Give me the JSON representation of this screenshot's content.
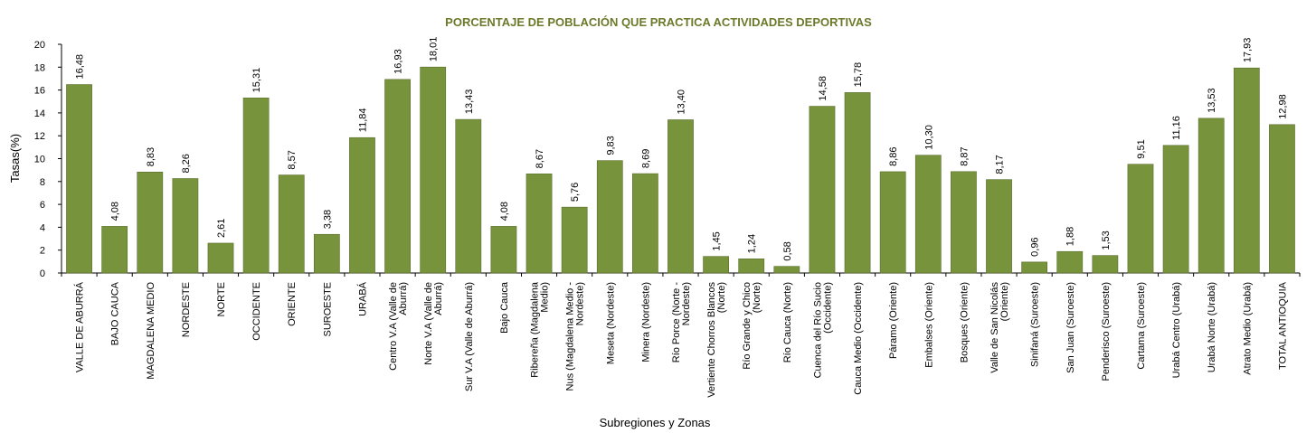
{
  "chart_data": {
    "type": "bar",
    "title": "PORCENTAJE DE POBLACIÓN QUE PRACTICA ACTIVIDADES DEPORTIVAS",
    "xlabel": "Subregiones y Zonas",
    "ylabel": "Tasas(%)",
    "ylim": [
      0,
      20
    ],
    "yticks": [
      0,
      2,
      4,
      6,
      8,
      10,
      12,
      14,
      16,
      18,
      20
    ],
    "bar_color": "#77933c",
    "title_color": "#6b7a2a",
    "grid": false,
    "legend": "none",
    "categories": [
      [
        "VALLE DE ABURRÁ"
      ],
      [
        "BAJO CAUCA"
      ],
      [
        "MAGDALENA MEDIO"
      ],
      [
        "NORDESTE"
      ],
      [
        "NORTE"
      ],
      [
        "OCCIDENTE"
      ],
      [
        "ORIENTE"
      ],
      [
        "SUROESTE"
      ],
      [
        "URABÁ"
      ],
      [
        "Centro V.A (Valle de",
        "Aburrá)"
      ],
      [
        "Norte V.A (Valle de",
        "Aburrá)"
      ],
      [
        "Sur V.A (Valle de Aburrá)"
      ],
      [
        "Bajo Cauca"
      ],
      [
        "Ribereña (Magdalena",
        "Medio)"
      ],
      [
        "Nus (Magdalena Medio -",
        "Nordeste)"
      ],
      [
        "Meseta (Nordeste)"
      ],
      [
        "Minera (Nordeste)"
      ],
      [
        "Río Porce (Norte -",
        "Nordeste)"
      ],
      [
        "Vertiente Chorros Blancos",
        "(Norte)"
      ],
      [
        "Río Grande y Chico",
        "(Norte)"
      ],
      [
        "Río Cauca (Norte)"
      ],
      [
        "Cuenca del Río Sucio",
        "(Occidente)"
      ],
      [
        "Cauca Medio (Occidente)"
      ],
      [
        "Páramo (Oriente)"
      ],
      [
        "Embalses (Oriente)"
      ],
      [
        "Bosques (Oriente)"
      ],
      [
        "Valle de San Nicolás",
        "(Oriente)"
      ],
      [
        "Sinifaná (Suroeste)"
      ],
      [
        "San Juan (Suroeste)"
      ],
      [
        "Penderisco (Suroeste)"
      ],
      [
        "Cartama (Suroeste)"
      ],
      [
        "Urabá Centro (Urabá)"
      ],
      [
        "Urabá Norte (Urabá)"
      ],
      [
        "Atrato Medio (Urabá)"
      ],
      [
        "TOTAL ANTIOQUIA"
      ]
    ],
    "values": [
      16.48,
      4.08,
      8.83,
      8.26,
      2.61,
      15.31,
      8.57,
      3.38,
      11.84,
      16.93,
      18.01,
      13.43,
      4.08,
      8.67,
      5.76,
      9.83,
      8.69,
      13.4,
      1.45,
      1.24,
      0.58,
      14.58,
      15.78,
      8.86,
      10.3,
      8.87,
      8.17,
      0.96,
      1.88,
      1.53,
      9.51,
      11.16,
      13.53,
      17.93,
      12.98
    ],
    "value_labels": [
      "16,48",
      "4,08",
      "8,83",
      "8,26",
      "2,61",
      "15,31",
      "8,57",
      "3,38",
      "11,84",
      "16,93",
      "18,01",
      "13,43",
      "4,08",
      "8,67",
      "5,76",
      "9,83",
      "8,69",
      "13,40",
      "1,45",
      "1,24",
      "0,58",
      "14,58",
      "15,78",
      "8,86",
      "10,30",
      "8,87",
      "8,17",
      "0,96",
      "1,88",
      "1,53",
      "9,51",
      "11,16",
      "13,53",
      "17,93",
      "12,98"
    ]
  }
}
